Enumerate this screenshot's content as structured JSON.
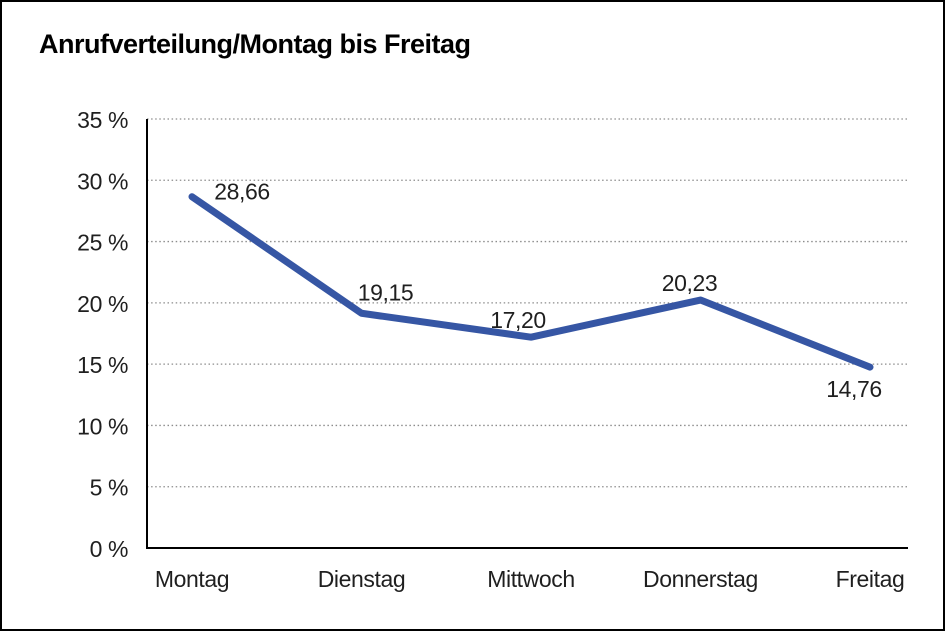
{
  "chart_data": {
    "type": "line",
    "title": "Anrufverteilung/Montag bis Freitag",
    "categories": [
      "Montag",
      "Dienstag",
      "Mittwoch",
      "Donnerstag",
      "Freitag"
    ],
    "values": [
      28.66,
      19.15,
      17.2,
      20.23,
      14.76
    ],
    "point_labels": [
      "28,66",
      "19,15",
      "17,20",
      "20,23",
      "14,76"
    ],
    "yticks": [
      0,
      5,
      10,
      15,
      20,
      25,
      30,
      35
    ],
    "ytick_labels": [
      "0 %",
      "5 %",
      "10 %",
      "15 %",
      "20 %",
      "25 %",
      "30 %",
      "35 %"
    ],
    "ylim": [
      0,
      35
    ],
    "xlabel": "",
    "ylabel": "",
    "grid": "horizontal-dotted",
    "legend": "none",
    "line_color": "#3656a4",
    "axis_color": "#000000",
    "gridline_color": "#8c8c8c",
    "text_color": "#1f1f1f"
  }
}
